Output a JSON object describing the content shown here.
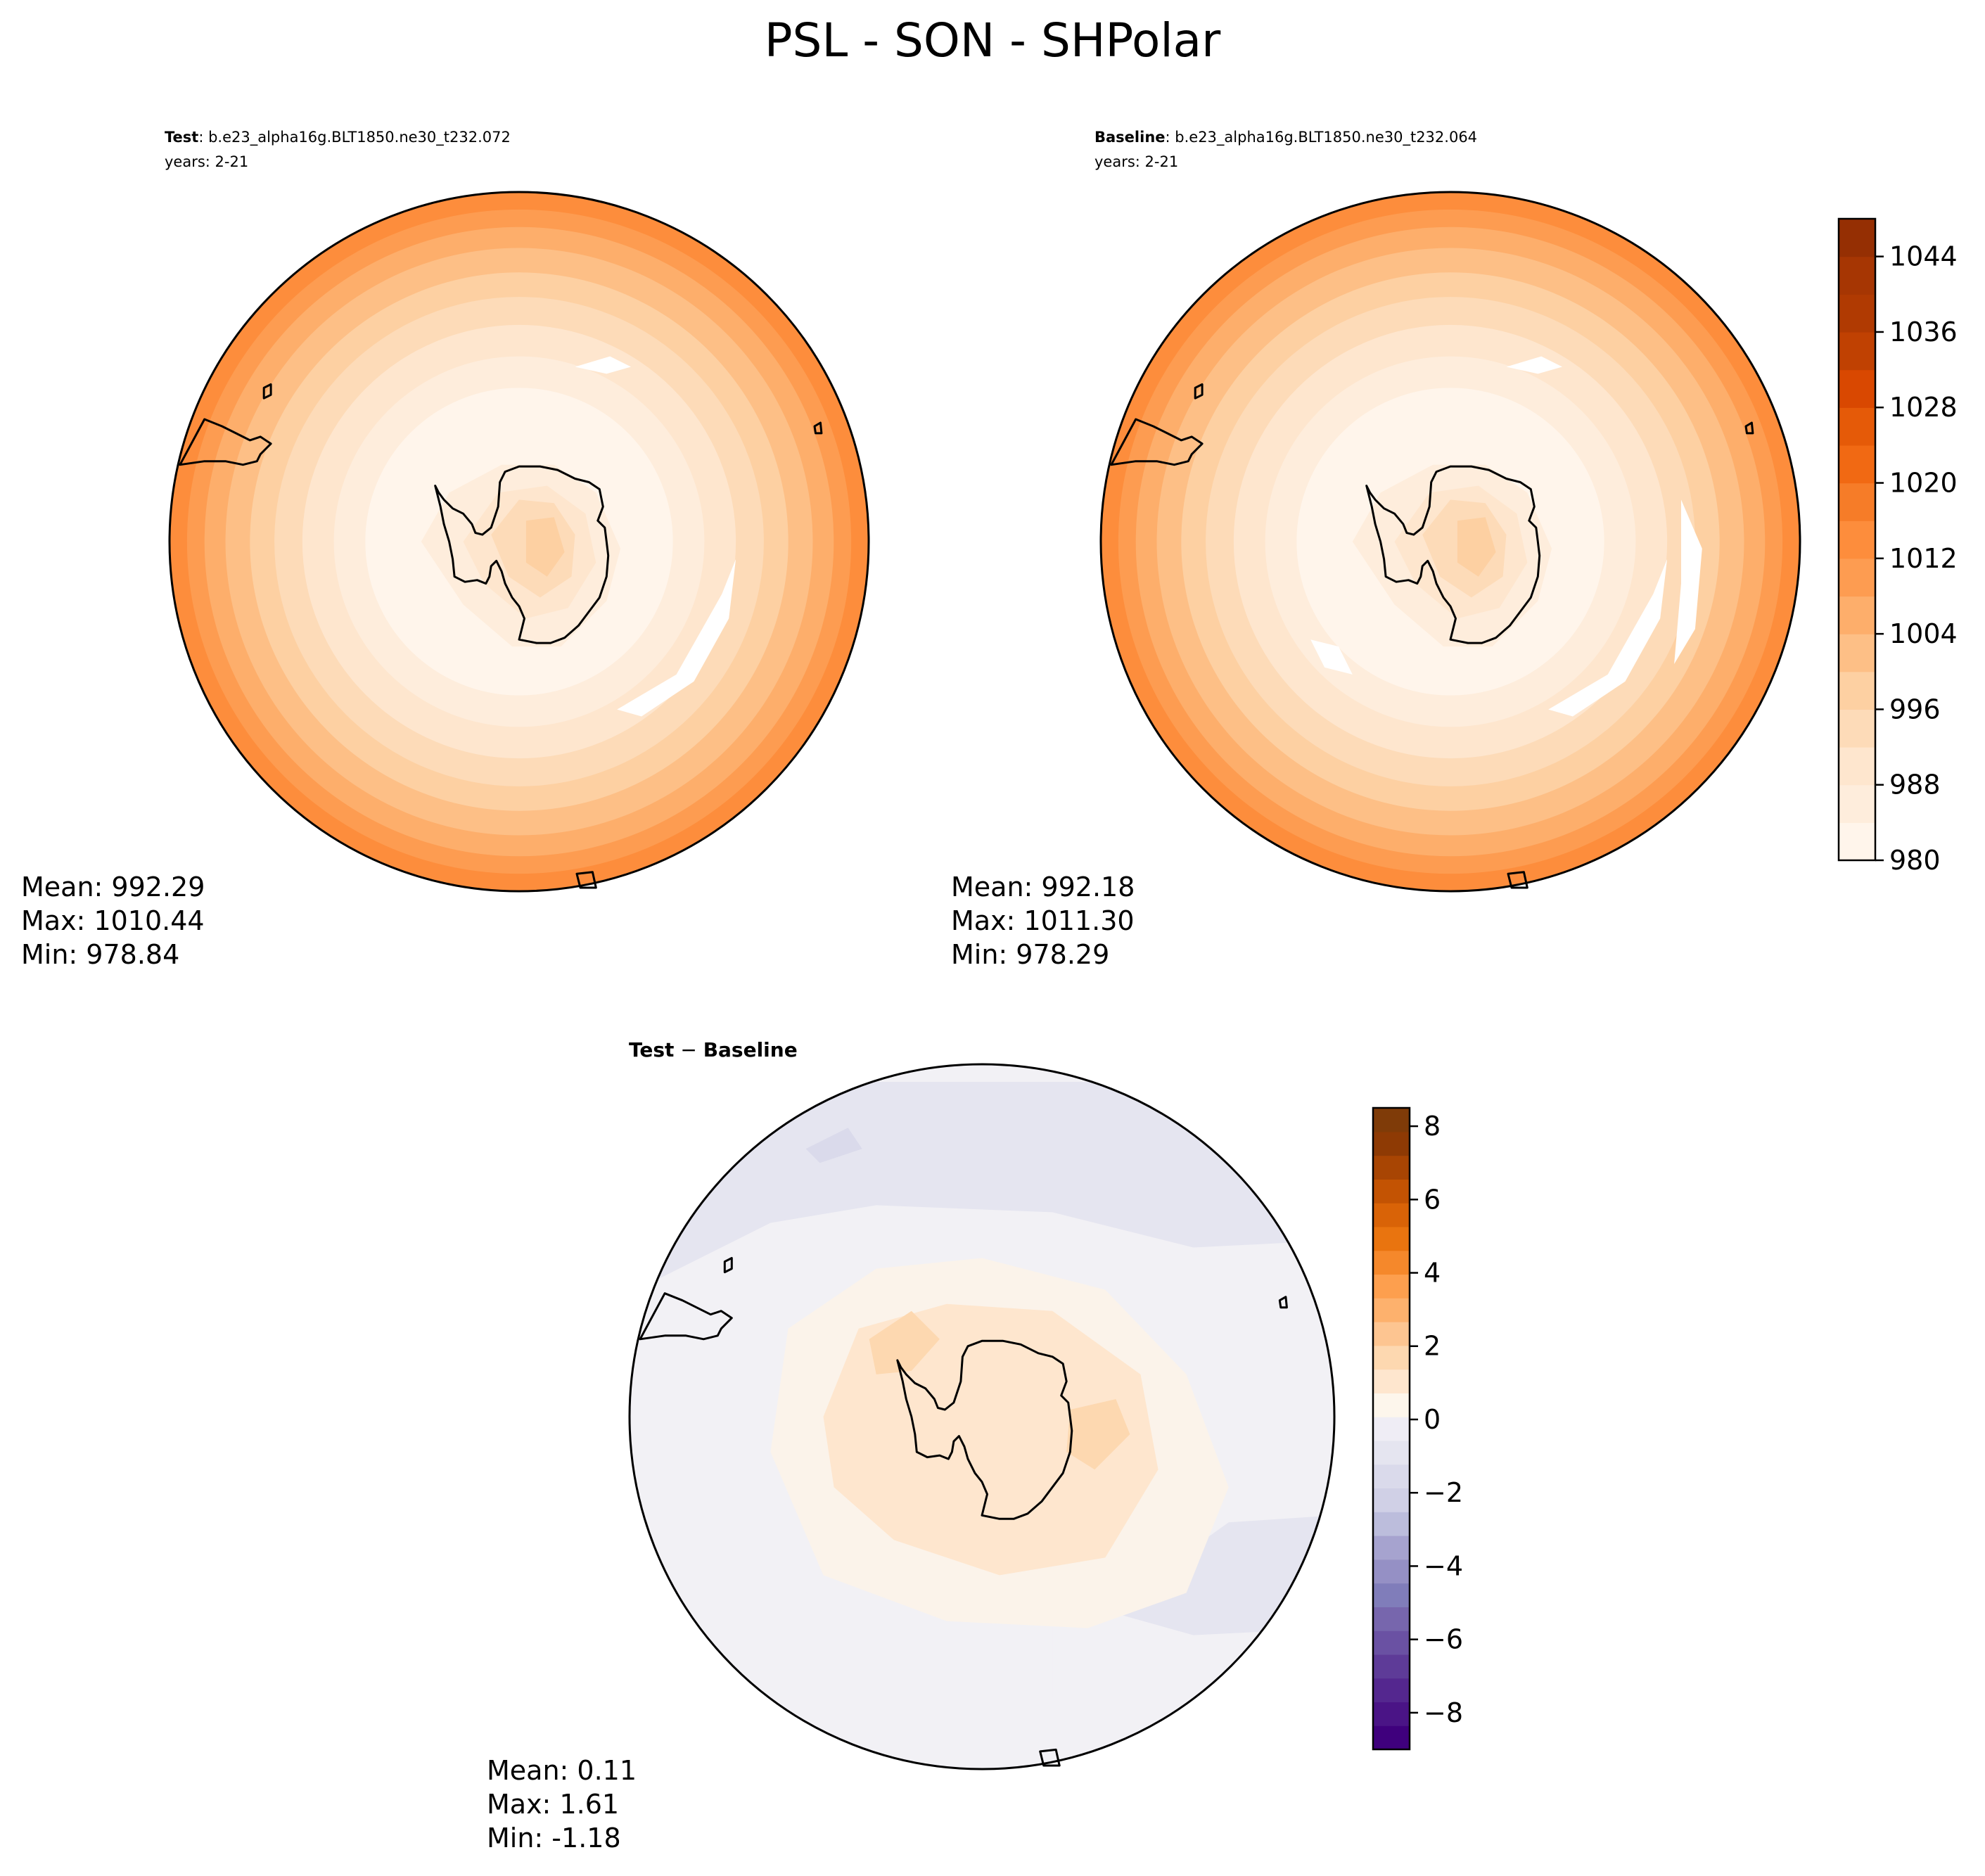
{
  "figure_title": "PSL - SON - SHPolar",
  "colors": {
    "coast": "#000000",
    "outline": "#000000",
    "absolute_levels": [
      "#fff5eb",
      "#feeddc",
      "#fee6ce",
      "#fddbb8",
      "#fdd0a2",
      "#fdbf86",
      "#fdae6b",
      "#fd9c51",
      "#fd8d3c",
      "#f67c28",
      "#f16913",
      "#e55a08",
      "#d94801",
      "#c04102",
      "#b03a02",
      "#a63603",
      "#952f03",
      "#7f2704"
    ],
    "difference_negative": [
      "#3f007d",
      "#4a1486",
      "#54278f",
      "#5e3b98",
      "#6a51a3",
      "#7766ad",
      "#807dba",
      "#9590c5",
      "#a6a3cf",
      "#bcbddc",
      "#d0d0e6",
      "#dadaeb",
      "#e5e5f0",
      "#efedf5"
    ],
    "difference_positive": [
      "#fdf6ec",
      "#fee6ce",
      "#fdd8b0",
      "#fdc591",
      "#fdb16d",
      "#fd9f4e",
      "#f5882b",
      "#e9740f",
      "#d96307",
      "#c35303",
      "#a84503",
      "#8e3a04",
      "#7f3b08"
    ]
  },
  "chart_data": [
    {
      "type": "heatmap",
      "panel": "test",
      "title_bold": "Test",
      "title_rest": ": b.e23_alpha16g.BLT1850.ne30_t232.072",
      "subtitle": "years: 2-21",
      "projection": "south-polar-stereographic",
      "contour_range": [
        980,
        1048
      ],
      "stats": {
        "mean": "Mean: 992.29",
        "max": "Max: 1010.44",
        "min": "Min: 978.84"
      }
    },
    {
      "type": "heatmap",
      "panel": "baseline",
      "title_bold": "Baseline",
      "title_rest": ": b.e23_alpha16g.BLT1850.ne30_t232.064",
      "subtitle": "years: 2-21",
      "projection": "south-polar-stereographic",
      "contour_range": [
        980,
        1048
      ],
      "colorbar": {
        "range": [
          980,
          1048
        ],
        "ticks": [
          980,
          988,
          996,
          1004,
          1012,
          1020,
          1028,
          1036,
          1044
        ],
        "tick_labels": [
          "980",
          "988",
          "996",
          "1004",
          "1012",
          "1020",
          "1028",
          "1036",
          "1044"
        ],
        "levels": 17
      },
      "stats": {
        "mean": "Mean: 992.18",
        "max": "Max: 1011.30",
        "min": "Min: 978.29"
      }
    },
    {
      "type": "heatmap",
      "panel": "difference",
      "title_bold_a": "Test",
      "title_minus": " − ",
      "title_bold_b": "Baseline",
      "projection": "south-polar-stereographic",
      "colorbar": {
        "range": [
          -9,
          8.5
        ],
        "ticks": [
          -8,
          -6,
          -4,
          -2,
          0,
          2,
          4,
          6,
          8
        ],
        "tick_labels": [
          "−8",
          "−6",
          "−4",
          "−2",
          "0",
          "2",
          "4",
          "6",
          "8"
        ],
        "levels": 27
      },
      "stats": {
        "mean": "Mean:  0.11",
        "max": "Max:  1.61",
        "min": "Min: -1.18"
      }
    }
  ]
}
